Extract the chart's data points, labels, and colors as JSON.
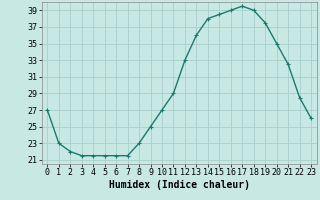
{
  "x": [
    0,
    1,
    2,
    3,
    4,
    5,
    6,
    7,
    8,
    9,
    10,
    11,
    12,
    13,
    14,
    15,
    16,
    17,
    18,
    19,
    20,
    21,
    22,
    23
  ],
  "y": [
    27,
    23,
    22,
    21.5,
    21.5,
    21.5,
    21.5,
    21.5,
    23,
    25,
    27,
    29,
    33,
    36,
    38,
    38.5,
    39,
    39.5,
    39,
    37.5,
    35,
    32.5,
    28.5,
    26
  ],
  "line_color": "#1a7a6e",
  "marker": "+",
  "marker_size": 3,
  "marker_lw": 0.8,
  "bg_color": "#c8e8e4",
  "grid_color": "#aacfcc",
  "xlabel": "Humidex (Indice chaleur)",
  "xlabel_fontsize": 7,
  "tick_fontsize": 6,
  "xlim": [
    -0.5,
    23.5
  ],
  "ylim": [
    20.5,
    40
  ],
  "yticks": [
    21,
    23,
    25,
    27,
    29,
    31,
    33,
    35,
    37,
    39
  ],
  "xticks": [
    0,
    1,
    2,
    3,
    4,
    5,
    6,
    7,
    8,
    9,
    10,
    11,
    12,
    13,
    14,
    15,
    16,
    17,
    18,
    19,
    20,
    21,
    22,
    23
  ],
  "line_width": 1.0
}
